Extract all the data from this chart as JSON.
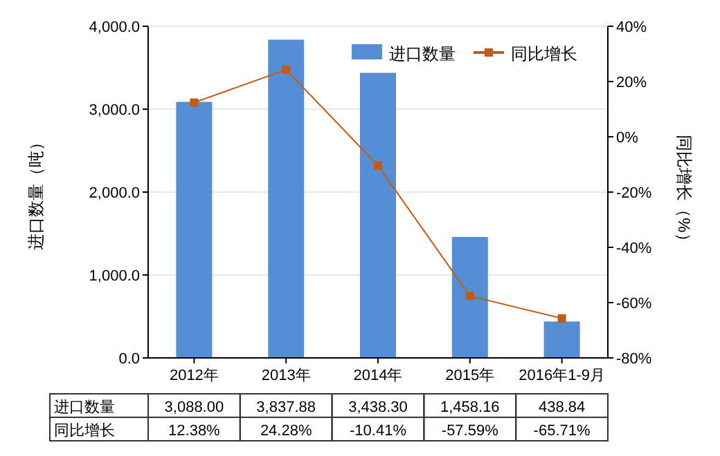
{
  "chart_data": {
    "type": "bar",
    "ylabel": "进口数量（吨）",
    "y2label": "同比增长（%）",
    "categories": [
      "2012年",
      "2013年",
      "2014年",
      "2015年",
      "2016年1-9月"
    ],
    "series": [
      {
        "name": "进口数量",
        "color": "#558ed5",
        "values": [
          3088.0,
          3837.88,
          3438.3,
          1458.16,
          438.84
        ],
        "value_labels": [
          "3,088.00",
          "3,837.88",
          "3,438.30",
          "1,458.16",
          "438.84"
        ]
      },
      {
        "name": "同比增长",
        "type": "line",
        "axis": "y2",
        "color": "#c55a11",
        "marker": "square",
        "values": [
          12.38,
          24.28,
          -10.41,
          -57.59,
          -65.71
        ],
        "value_labels": [
          "12.38%",
          "24.28%",
          "-10.41%",
          "-57.59%",
          "-65.71%"
        ]
      }
    ],
    "ylim": [
      0,
      4000
    ],
    "yticks": [
      {
        "value": 0,
        "label": "0.0"
      },
      {
        "value": 1000,
        "label": "1,000.0"
      },
      {
        "value": 2000,
        "label": "2,000.0"
      },
      {
        "value": 3000,
        "label": "3,000.0"
      },
      {
        "value": 4000,
        "label": "4,000.0"
      }
    ],
    "y2lim": [
      -80,
      40
    ],
    "y2ticks": [
      {
        "value": -80,
        "label": "-80%"
      },
      {
        "value": -60,
        "label": "-60%"
      },
      {
        "value": -40,
        "label": "-40%"
      },
      {
        "value": -20,
        "label": "-20%"
      },
      {
        "value": 0,
        "label": "0%"
      },
      {
        "value": 20,
        "label": "20%"
      },
      {
        "value": 40,
        "label": "40%"
      }
    ],
    "grid": "y",
    "legend": "top right"
  }
}
